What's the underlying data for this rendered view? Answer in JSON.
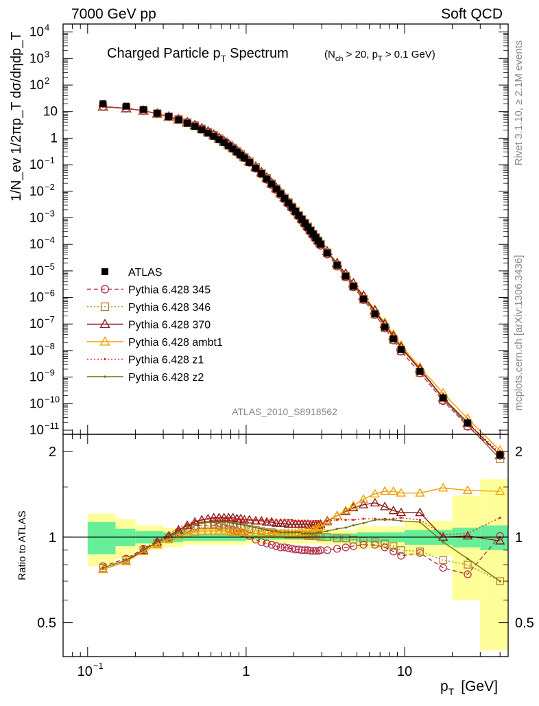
{
  "header": {
    "left_title": "7000 GeV pp",
    "right_title": "Soft QCD"
  },
  "side_labels": {
    "rivet": "Rivet 3.1.10, ≥ 2.1M events",
    "mcplots": "mcplots.cern.ch [arXiv:1306.3436]"
  },
  "main_plot": {
    "title": "Charged Particle p",
    "title_sub": "T",
    "title_rest": " Spectrum",
    "cut_text_a": "(N",
    "cut_text_sub1": "ch",
    "cut_text_b": " > 20, p",
    "cut_text_sub2": "T",
    "cut_text_c": " > 0.1 GeV)",
    "ylabel": "1/N_ev 1/2πp_T dσ/dηdp_T",
    "analysis_id": "ATLAS_2010_S8918562",
    "y_ticks": [
      {
        "value": 4,
        "label": "10",
        "exp": "4"
      },
      {
        "value": 3,
        "label": "10",
        "exp": "3"
      },
      {
        "value": 2,
        "label": "10",
        "exp": "2"
      },
      {
        "value": 1,
        "label": "10",
        "exp": ""
      },
      {
        "value": 0,
        "label": "1",
        "exp": ""
      },
      {
        "value": -1,
        "label": "10",
        "exp": "−1"
      },
      {
        "value": -2,
        "label": "10",
        "exp": "−2"
      },
      {
        "value": -3,
        "label": "10",
        "exp": "−3"
      },
      {
        "value": -4,
        "label": "10",
        "exp": "−4"
      },
      {
        "value": -5,
        "label": "10",
        "exp": "−5"
      },
      {
        "value": -6,
        "label": "10",
        "exp": "−6"
      },
      {
        "value": -7,
        "label": "10",
        "exp": "−7"
      },
      {
        "value": -8,
        "label": "10",
        "exp": "−8"
      },
      {
        "value": -9,
        "label": "10",
        "exp": "−9"
      },
      {
        "value": -10,
        "label": "10",
        "exp": "−10"
      },
      {
        "value": -11,
        "label": "10",
        "exp": "−11"
      }
    ]
  },
  "ratio_plot": {
    "ylabel": "Ratio to ATLAS",
    "y_ticks": [
      {
        "value": 0.5,
        "label": "0.5"
      },
      {
        "value": 1,
        "label": "1"
      },
      {
        "value": 2,
        "label": "2"
      }
    ]
  },
  "x_axis": {
    "label": "p",
    "label_sub": "T",
    "label_unit": "[GeV]",
    "ticks": [
      {
        "value": 0.1,
        "label": "10",
        "exp": "−1"
      },
      {
        "value": 1,
        "label": "1",
        "exp": ""
      },
      {
        "value": 10,
        "label": "10",
        "exp": ""
      }
    ]
  },
  "legend": [
    {
      "name": "ATLAS",
      "color": "#000000",
      "marker": "square-filled",
      "line": "none"
    },
    {
      "name": "Pythia 6.428 345",
      "color": "#b0304a",
      "marker": "circle-open",
      "line": "dashed"
    },
    {
      "name": "Pythia 6.428 346",
      "color": "#b08030",
      "marker": "square-open",
      "line": "dotted"
    },
    {
      "name": "Pythia 6.428 370",
      "color": "#8b1a1a",
      "marker": "triangle-open",
      "line": "solid"
    },
    {
      "name": "Pythia 6.428 ambt1",
      "color": "#f0a000",
      "marker": "triangle-open",
      "line": "solid"
    },
    {
      "name": "Pythia 6.428 z1",
      "color": "#e02020",
      "marker": "dot",
      "line": "dotted"
    },
    {
      "name": "Pythia 6.428 z2",
      "color": "#707010",
      "marker": "dot",
      "line": "solid"
    }
  ],
  "chart_data": {
    "type": "line",
    "x_scale": "log",
    "y_scale": "log",
    "xlim": [
      0.07,
      45
    ],
    "ylim": [
      7e-12,
      20000
    ],
    "ratio_ylim": [
      0.38,
      2.3
    ],
    "x": [
      0.125,
      0.175,
      0.225,
      0.275,
      0.325,
      0.375,
      0.425,
      0.475,
      0.525,
      0.575,
      0.625,
      0.675,
      0.725,
      0.775,
      0.825,
      0.875,
      0.925,
      0.975,
      1.05,
      1.15,
      1.25,
      1.35,
      1.45,
      1.55,
      1.65,
      1.75,
      1.85,
      1.95,
      2.05,
      2.15,
      2.25,
      2.35,
      2.45,
      2.55,
      2.65,
      2.75,
      2.85,
      2.95,
      3.25,
      3.75,
      4.25,
      4.75,
      5.5,
      6.5,
      7.5,
      8.5,
      9.5,
      12.5,
      17.5,
      25,
      40
    ],
    "series": [
      {
        "name": "ATLAS",
        "values": [
          19.8,
          16.1,
          12.0,
          8.8,
          6.5,
          4.9,
          3.65,
          2.75,
          2.05,
          1.55,
          1.17,
          0.885,
          0.672,
          0.512,
          0.391,
          0.3,
          0.231,
          0.179,
          0.122,
          0.0746,
          0.0463,
          0.0292,
          0.0187,
          0.0122,
          0.00807,
          0.00541,
          0.00367,
          0.00252,
          0.00175,
          0.00123,
          0.000871,
          0.000624,
          0.000452,
          0.00033,
          0.000243,
          0.000181,
          0.000135,
          0.000102,
          4.78e-05,
          1.65e-05,
          6.36e-06,
          2.67e-06,
          8.79e-07,
          2.41e-07,
          7.67e-08,
          2.76e-08,
          1.09e-08,
          1.64e-09,
          1.66e-10,
          1.88e-11,
          1.18e-12
        ]
      },
      {
        "name": "Pythia 6.428 345",
        "ratio": [
          0.79,
          0.84,
          0.91,
          0.96,
          1.0,
          1.04,
          1.07,
          1.09,
          1.1,
          1.1,
          1.1,
          1.09,
          1.08,
          1.07,
          1.06,
          1.05,
          1.04,
          1.03,
          1.01,
          0.98,
          0.96,
          0.95,
          0.94,
          0.93,
          0.92,
          0.92,
          0.915,
          0.91,
          0.905,
          0.905,
          0.9,
          0.9,
          0.9,
          0.895,
          0.895,
          0.895,
          0.895,
          0.9,
          0.9,
          0.91,
          0.92,
          0.93,
          0.94,
          0.94,
          0.92,
          0.89,
          0.86,
          0.88,
          0.78,
          0.74,
          1.01
        ]
      },
      {
        "name": "Pythia 6.428 346",
        "ratio": [
          0.78,
          0.83,
          0.9,
          0.95,
          0.99,
          1.03,
          1.06,
          1.08,
          1.1,
          1.1,
          1.11,
          1.1,
          1.1,
          1.1,
          1.09,
          1.09,
          1.08,
          1.08,
          1.07,
          1.06,
          1.05,
          1.04,
          1.04,
          1.03,
          1.03,
          1.03,
          1.02,
          1.02,
          1.02,
          1.02,
          1.02,
          1.02,
          1.01,
          1.01,
          1.01,
          1.01,
          1.01,
          1.0,
          1.0,
          0.99,
          0.99,
          0.98,
          0.97,
          0.96,
          0.95,
          0.93,
          0.9,
          0.89,
          0.83,
          0.8,
          0.7
        ]
      },
      {
        "name": "Pythia 6.428 370",
        "ratio": [
          0.77,
          0.82,
          0.9,
          0.96,
          1.01,
          1.06,
          1.1,
          1.13,
          1.15,
          1.16,
          1.17,
          1.17,
          1.17,
          1.17,
          1.17,
          1.16,
          1.16,
          1.15,
          1.15,
          1.14,
          1.14,
          1.13,
          1.13,
          1.12,
          1.12,
          1.12,
          1.11,
          1.11,
          1.11,
          1.11,
          1.11,
          1.11,
          1.11,
          1.1,
          1.1,
          1.1,
          1.1,
          1.11,
          1.14,
          1.19,
          1.23,
          1.27,
          1.3,
          1.32,
          1.28,
          1.24,
          1.22,
          1.22,
          1.0,
          1.01,
          0.97
        ]
      },
      {
        "name": "Pythia 6.428 ambt1",
        "ratio": [
          0.77,
          0.82,
          0.89,
          0.94,
          0.98,
          1.01,
          1.03,
          1.04,
          1.05,
          1.05,
          1.05,
          1.05,
          1.05,
          1.05,
          1.04,
          1.04,
          1.04,
          1.04,
          1.03,
          1.03,
          1.03,
          1.03,
          1.03,
          1.03,
          1.03,
          1.03,
          1.03,
          1.03,
          1.03,
          1.04,
          1.04,
          1.04,
          1.05,
          1.05,
          1.06,
          1.07,
          1.08,
          1.09,
          1.13,
          1.19,
          1.24,
          1.29,
          1.36,
          1.42,
          1.45,
          1.45,
          1.43,
          1.43,
          1.49,
          1.46,
          1.45
        ]
      },
      {
        "name": "Pythia 6.428 z1",
        "ratio": [
          0.78,
          0.83,
          0.91,
          0.97,
          1.03,
          1.08,
          1.11,
          1.14,
          1.15,
          1.16,
          1.16,
          1.16,
          1.16,
          1.16,
          1.15,
          1.15,
          1.15,
          1.15,
          1.15,
          1.15,
          1.15,
          1.15,
          1.15,
          1.15,
          1.15,
          1.15,
          1.15,
          1.15,
          1.14,
          1.14,
          1.14,
          1.14,
          1.14,
          1.14,
          1.14,
          1.14,
          1.14,
          1.14,
          1.14,
          1.15,
          1.15,
          1.15,
          1.16,
          1.16,
          1.16,
          1.16,
          1.17,
          1.15,
          1.02,
          1.03,
          1.17
        ]
      },
      {
        "name": "Pythia 6.428 z2",
        "ratio": [
          0.78,
          0.83,
          0.9,
          0.96,
          1.01,
          1.05,
          1.08,
          1.11,
          1.12,
          1.13,
          1.13,
          1.13,
          1.13,
          1.13,
          1.12,
          1.11,
          1.11,
          1.1,
          1.09,
          1.08,
          1.07,
          1.06,
          1.05,
          1.05,
          1.04,
          1.04,
          1.04,
          1.04,
          1.04,
          1.04,
          1.03,
          1.03,
          1.03,
          1.03,
          1.03,
          1.03,
          1.04,
          1.04,
          1.05,
          1.07,
          1.08,
          1.1,
          1.12,
          1.15,
          1.15,
          1.15,
          1.14,
          1.13,
          0.96,
          0.84,
          0.7
        ]
      }
    ],
    "ratio_band_edges": [
      0.1,
      0.15,
      0.2,
      0.3,
      0.4,
      1,
      2,
      3,
      5,
      10,
      20,
      30,
      45
    ],
    "ratio_band_stat": [
      0.13,
      0.07,
      0.05,
      0.04,
      0.03,
      0.02,
      0.02,
      0.03,
      0.04,
      0.06,
      0.08,
      0.1
    ],
    "ratio_band_total": [
      0.21,
      0.16,
      0.1,
      0.08,
      0.06,
      0.05,
      0.05,
      0.06,
      0.09,
      0.14,
      0.4,
      0.6
    ]
  }
}
